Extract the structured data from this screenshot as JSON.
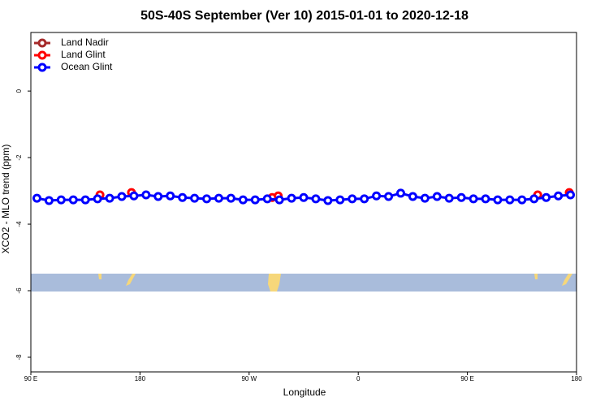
{
  "chart_data": {
    "type": "line",
    "title": "50S-40S September (Ver 10)   2015-01-01 to 2020-12-18",
    "xlabel": "Longitude",
    "ylabel": "XCO2 - MLO trend (ppm)",
    "xlim": [
      90,
      540
    ],
    "ylim": [
      -8.44,
      1.76
    ],
    "xticks": [
      {
        "value": 90,
        "label": "90 E"
      },
      180,
      {
        "value": 270,
        "label": "90 W"
      },
      {
        "value": 360,
        "label": "0"
      },
      {
        "value": 450,
        "label": "90 E"
      },
      {
        "value": 540,
        "label": "180"
      }
    ],
    "yticks": [
      0,
      -2,
      -4,
      -6,
      -8
    ],
    "legend": "top-left",
    "series": [
      {
        "name": "Land Nadir",
        "color": "#a52a2a",
        "x": [],
        "values": []
      },
      {
        "name": "Land Glint",
        "color": "#ff0000",
        "x": [
          147,
          173,
          289,
          294,
          508,
          534
        ],
        "values": [
          -3.12,
          -3.05,
          -3.2,
          -3.15,
          -3.12,
          -3.05
        ]
      },
      {
        "name": "Ocean Glint",
        "color": "#0000ff",
        "x": [
          95,
          105,
          115,
          125,
          135,
          145,
          155,
          165,
          175,
          185,
          195,
          205,
          215,
          225,
          235,
          245,
          255,
          265,
          275,
          285,
          295,
          305,
          315,
          325,
          335,
          345,
          355,
          365,
          375,
          385,
          395,
          405,
          415,
          425,
          435,
          445,
          455,
          465,
          475,
          485,
          495,
          505,
          515,
          525,
          535
        ],
        "values": [
          -3.22,
          -3.29,
          -3.27,
          -3.27,
          -3.27,
          -3.24,
          -3.22,
          -3.17,
          -3.15,
          -3.12,
          -3.17,
          -3.15,
          -3.2,
          -3.22,
          -3.24,
          -3.22,
          -3.22,
          -3.27,
          -3.27,
          -3.24,
          -3.27,
          -3.22,
          -3.2,
          -3.24,
          -3.29,
          -3.27,
          -3.24,
          -3.24,
          -3.15,
          -3.17,
          -3.07,
          -3.17,
          -3.22,
          -3.17,
          -3.22,
          -3.2,
          -3.24,
          -3.24,
          -3.27,
          -3.27,
          -3.27,
          -3.24,
          -3.2,
          -3.15,
          -3.12
        ]
      }
    ]
  }
}
